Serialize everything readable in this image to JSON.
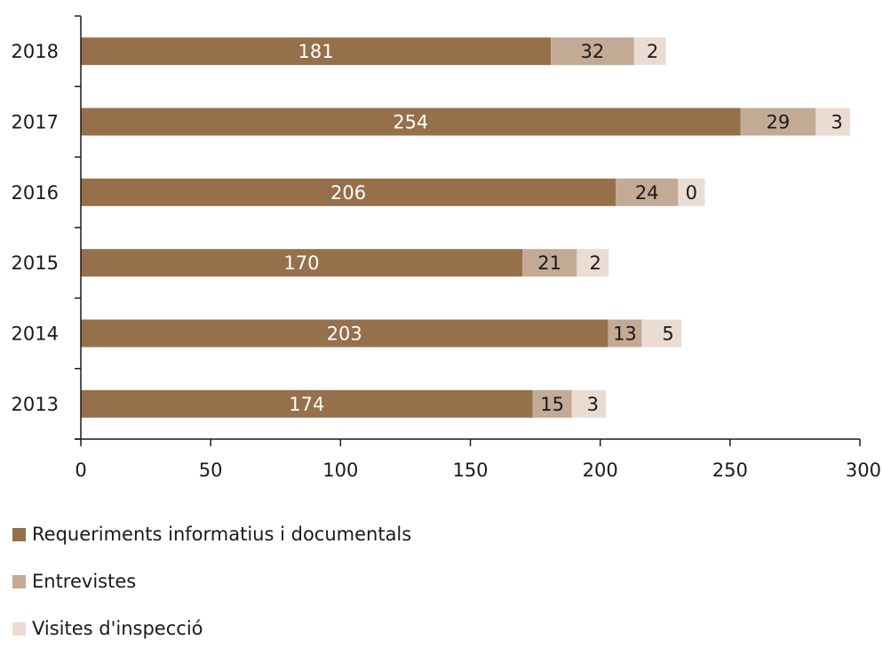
{
  "chart_data": {
    "type": "bar",
    "orientation": "horizontal",
    "stacked": true,
    "title": "",
    "xlabel": "",
    "ylabel": "",
    "categories": [
      "2018",
      "2017",
      "2016",
      "2015",
      "2014",
      "2013"
    ],
    "series": [
      {
        "name": "Requeriments informatius i documentals",
        "color": "#96704a",
        "label_color": "#ffffff",
        "values": [
          181,
          254,
          206,
          170,
          203,
          174
        ]
      },
      {
        "name": "Entrevistes",
        "color": "#c3aa94",
        "label_color": "#1a1a1a",
        "values": [
          32,
          29,
          24,
          21,
          13,
          15
        ]
      },
      {
        "name": "Visites d'inspecció",
        "color": "#eadcd2",
        "label_color": "#1a1a1a",
        "values": [
          2,
          3,
          0,
          2,
          5,
          3
        ]
      }
    ],
    "xlim": [
      0,
      300
    ],
    "xticks": [
      "0",
      "50",
      "100",
      "150",
      "200",
      "250",
      "300"
    ],
    "grid": false,
    "legend_position": "bottom-left"
  }
}
